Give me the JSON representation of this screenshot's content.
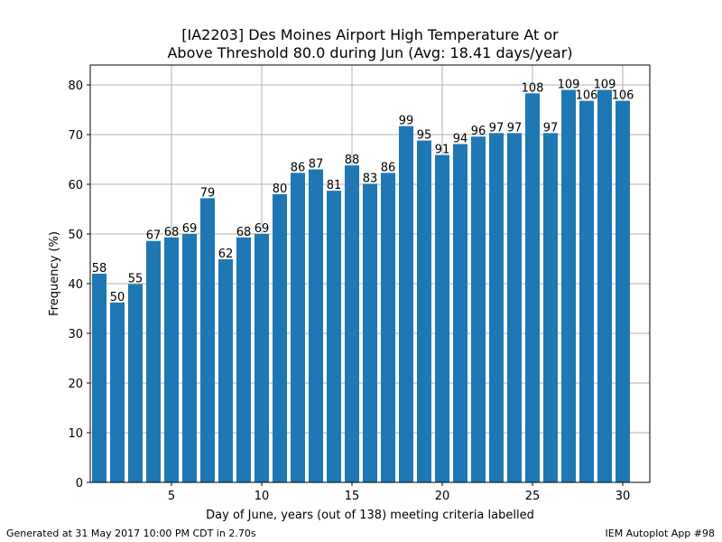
{
  "chart_data": {
    "type": "bar",
    "title_line1": "[IA2203] Des Moines Airport High Temperature At or",
    "title_line2": "Above Threshold 80.0 during Jun (Avg: 18.41 days/year)",
    "xlabel": "Day of June, years (out of 138) meeting criteria labelled",
    "ylabel": "Frequency (%)",
    "xlim": [
      0.5,
      31.5
    ],
    "ylim": [
      0,
      84
    ],
    "xticks": [
      5,
      10,
      15,
      20,
      25,
      30
    ],
    "yticks": [
      0,
      10,
      20,
      30,
      40,
      50,
      60,
      70,
      80
    ],
    "grid": true,
    "bar_color": "#1f77b4",
    "days": [
      1,
      2,
      3,
      4,
      5,
      6,
      7,
      8,
      9,
      10,
      11,
      12,
      13,
      14,
      15,
      16,
      17,
      18,
      19,
      20,
      21,
      22,
      23,
      24,
      25,
      26,
      27,
      28,
      29,
      30
    ],
    "years": [
      58,
      50,
      55,
      67,
      68,
      69,
      79,
      62,
      68,
      69,
      80,
      86,
      87,
      81,
      88,
      83,
      86,
      99,
      95,
      91,
      94,
      96,
      97,
      97,
      108,
      97,
      109,
      106,
      109,
      106
    ],
    "values": [
      42.0,
      36.2,
      39.9,
      48.6,
      49.3,
      50.0,
      57.2,
      44.9,
      49.3,
      50.0,
      58.0,
      62.3,
      63.0,
      58.7,
      63.8,
      60.1,
      62.3,
      71.7,
      68.8,
      65.9,
      68.1,
      69.6,
      70.3,
      70.3,
      78.3,
      70.3,
      79.0,
      76.8,
      79.0,
      76.8
    ]
  },
  "footer": {
    "left": "Generated at 31 May 2017 10:00 PM CDT in 2.70s",
    "right": "IEM Autoplot App #98"
  }
}
